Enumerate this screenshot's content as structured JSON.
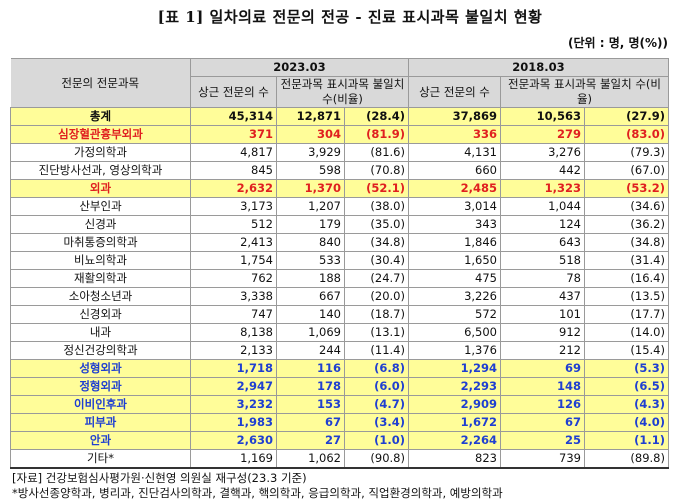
{
  "title": "[표 1] 일차의료 전문의 전공 - 진료 표시과목 불일치 현황",
  "unit": "(단위 : 명, 명(%))",
  "header": {
    "col_label": "전문의 전문과목",
    "year1": "2023.03",
    "year2": "2018.03",
    "sub_count": "상근 전문의 수",
    "sub_count_2018": "상근 전문의 수",
    "sub_mismatch": "전문과목 표시과목 불일치 수(비율)"
  },
  "rows": [
    {
      "name": "총계",
      "c23": "45,314",
      "m23": "12,871",
      "p23": "(28.4)",
      "c18": "37,869",
      "m18": "10,563",
      "p18": "(27.9)",
      "style": "total"
    },
    {
      "name": "심장혈관흉부외과",
      "c23": "371",
      "m23": "304",
      "p23": "(81.9)",
      "c18": "336",
      "m18": "279",
      "p18": "(83.0)",
      "style": "red"
    },
    {
      "name": "가정의학과",
      "c23": "4,817",
      "m23": "3,929",
      "p23": "(81.6)",
      "c18": "4,131",
      "m18": "3,276",
      "p18": "(79.3)",
      "style": ""
    },
    {
      "name": "진단방사선과, 영상의학과",
      "c23": "845",
      "m23": "598",
      "p23": "(70.8)",
      "c18": "660",
      "m18": "442",
      "p18": "(67.0)",
      "style": ""
    },
    {
      "name": "외과",
      "c23": "2,632",
      "m23": "1,370",
      "p23": "(52.1)",
      "c18": "2,485",
      "m18": "1,323",
      "p18": "(53.2)",
      "style": "red"
    },
    {
      "name": "산부인과",
      "c23": "3,173",
      "m23": "1,207",
      "p23": "(38.0)",
      "c18": "3,014",
      "m18": "1,044",
      "p18": "(34.6)",
      "style": ""
    },
    {
      "name": "신경과",
      "c23": "512",
      "m23": "179",
      "p23": "(35.0)",
      "c18": "343",
      "m18": "124",
      "p18": "(36.2)",
      "style": ""
    },
    {
      "name": "마취통증의학과",
      "c23": "2,413",
      "m23": "840",
      "p23": "(34.8)",
      "c18": "1,846",
      "m18": "643",
      "p18": "(34.8)",
      "style": ""
    },
    {
      "name": "비뇨의학과",
      "c23": "1,754",
      "m23": "533",
      "p23": "(30.4)",
      "c18": "1,650",
      "m18": "518",
      "p18": "(31.4)",
      "style": ""
    },
    {
      "name": "재활의학과",
      "c23": "762",
      "m23": "188",
      "p23": "(24.7)",
      "c18": "475",
      "m18": "78",
      "p18": "(16.4)",
      "style": ""
    },
    {
      "name": "소아청소년과",
      "c23": "3,338",
      "m23": "667",
      "p23": "(20.0)",
      "c18": "3,226",
      "m18": "437",
      "p18": "(13.5)",
      "style": ""
    },
    {
      "name": "신경외과",
      "c23": "747",
      "m23": "140",
      "p23": "(18.7)",
      "c18": "572",
      "m18": "101",
      "p18": "(17.7)",
      "style": ""
    },
    {
      "name": "내과",
      "c23": "8,138",
      "m23": "1,069",
      "p23": "(13.1)",
      "c18": "6,500",
      "m18": "912",
      "p18": "(14.0)",
      "style": ""
    },
    {
      "name": "정신건강의학과",
      "c23": "2,133",
      "m23": "244",
      "p23": "(11.4)",
      "c18": "1,376",
      "m18": "212",
      "p18": "(15.4)",
      "style": ""
    },
    {
      "name": "성형외과",
      "c23": "1,718",
      "m23": "116",
      "p23": "(6.8)",
      "c18": "1,294",
      "m18": "69",
      "p18": "(5.3)",
      "style": "blue"
    },
    {
      "name": "정형외과",
      "c23": "2,947",
      "m23": "178",
      "p23": "(6.0)",
      "c18": "2,293",
      "m18": "148",
      "p18": "(6.5)",
      "style": "blue"
    },
    {
      "name": "이비인후과",
      "c23": "3,232",
      "m23": "153",
      "p23": "(4.7)",
      "c18": "2,909",
      "m18": "126",
      "p18": "(4.3)",
      "style": "blue"
    },
    {
      "name": "피부과",
      "c23": "1,983",
      "m23": "67",
      "p23": "(3.4)",
      "c18": "1,672",
      "m18": "67",
      "p18": "(4.0)",
      "style": "blue"
    },
    {
      "name": "안과",
      "c23": "2,630",
      "m23": "27",
      "p23": "(1.0)",
      "c18": "2,264",
      "m18": "25",
      "p18": "(1.1)",
      "style": "blue"
    },
    {
      "name": "기타*",
      "c23": "1,169",
      "m23": "1,062",
      "p23": "(90.8)",
      "c18": "823",
      "m18": "739",
      "p18": "(89.8)",
      "style": ""
    }
  ],
  "source": "[자료] 건강보험심사평가원·신현영 의원실 재구성(23.3 기준)",
  "footnote": "*방사선종양학과, 병리과, 진단검사의학과, 결핵과, 핵의학과, 응급의학과, 직업환경의학과, 예방의학과"
}
